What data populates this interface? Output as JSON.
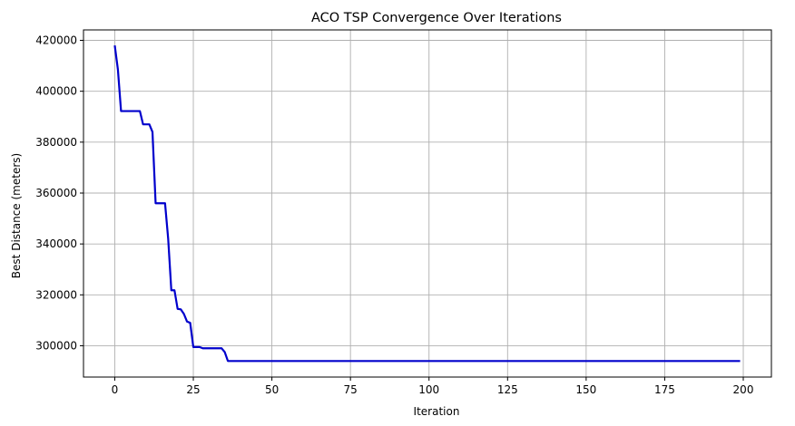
{
  "chart_data": {
    "type": "line",
    "title": "ACO TSP Convergence Over Iterations",
    "xlabel": "Iteration",
    "ylabel": "Best Distance (meters)",
    "xlim": [
      -9.95,
      208.95
    ],
    "ylim": [
      287700,
      424100
    ],
    "x_ticks": [
      0,
      25,
      50,
      75,
      100,
      125,
      150,
      175,
      200
    ],
    "y_ticks": [
      300000,
      320000,
      340000,
      360000,
      380000,
      400000,
      420000
    ],
    "grid": true,
    "line_color": "#0000cc",
    "grid_color": "#b0b0b0",
    "series": [
      {
        "name": "",
        "x": [
          0,
          1,
          2,
          3,
          4,
          5,
          6,
          7,
          8,
          9,
          10,
          11,
          12,
          13,
          14,
          15,
          16,
          17,
          18,
          19,
          20,
          21,
          22,
          23,
          24,
          25,
          26,
          27,
          28,
          29,
          30,
          31,
          32,
          33,
          34,
          35,
          36,
          199
        ],
        "y": [
          418000,
          408500,
          392200,
          392200,
          392200,
          392200,
          392200,
          392200,
          392200,
          387000,
          387000,
          387000,
          384000,
          356000,
          356000,
          356000,
          356000,
          342000,
          321800,
          321800,
          314500,
          314300,
          312500,
          309500,
          309000,
          299500,
          299500,
          299500,
          299000,
          299000,
          299000,
          299000,
          299000,
          299000,
          299000,
          297500,
          294000,
          294000
        ]
      }
    ]
  }
}
